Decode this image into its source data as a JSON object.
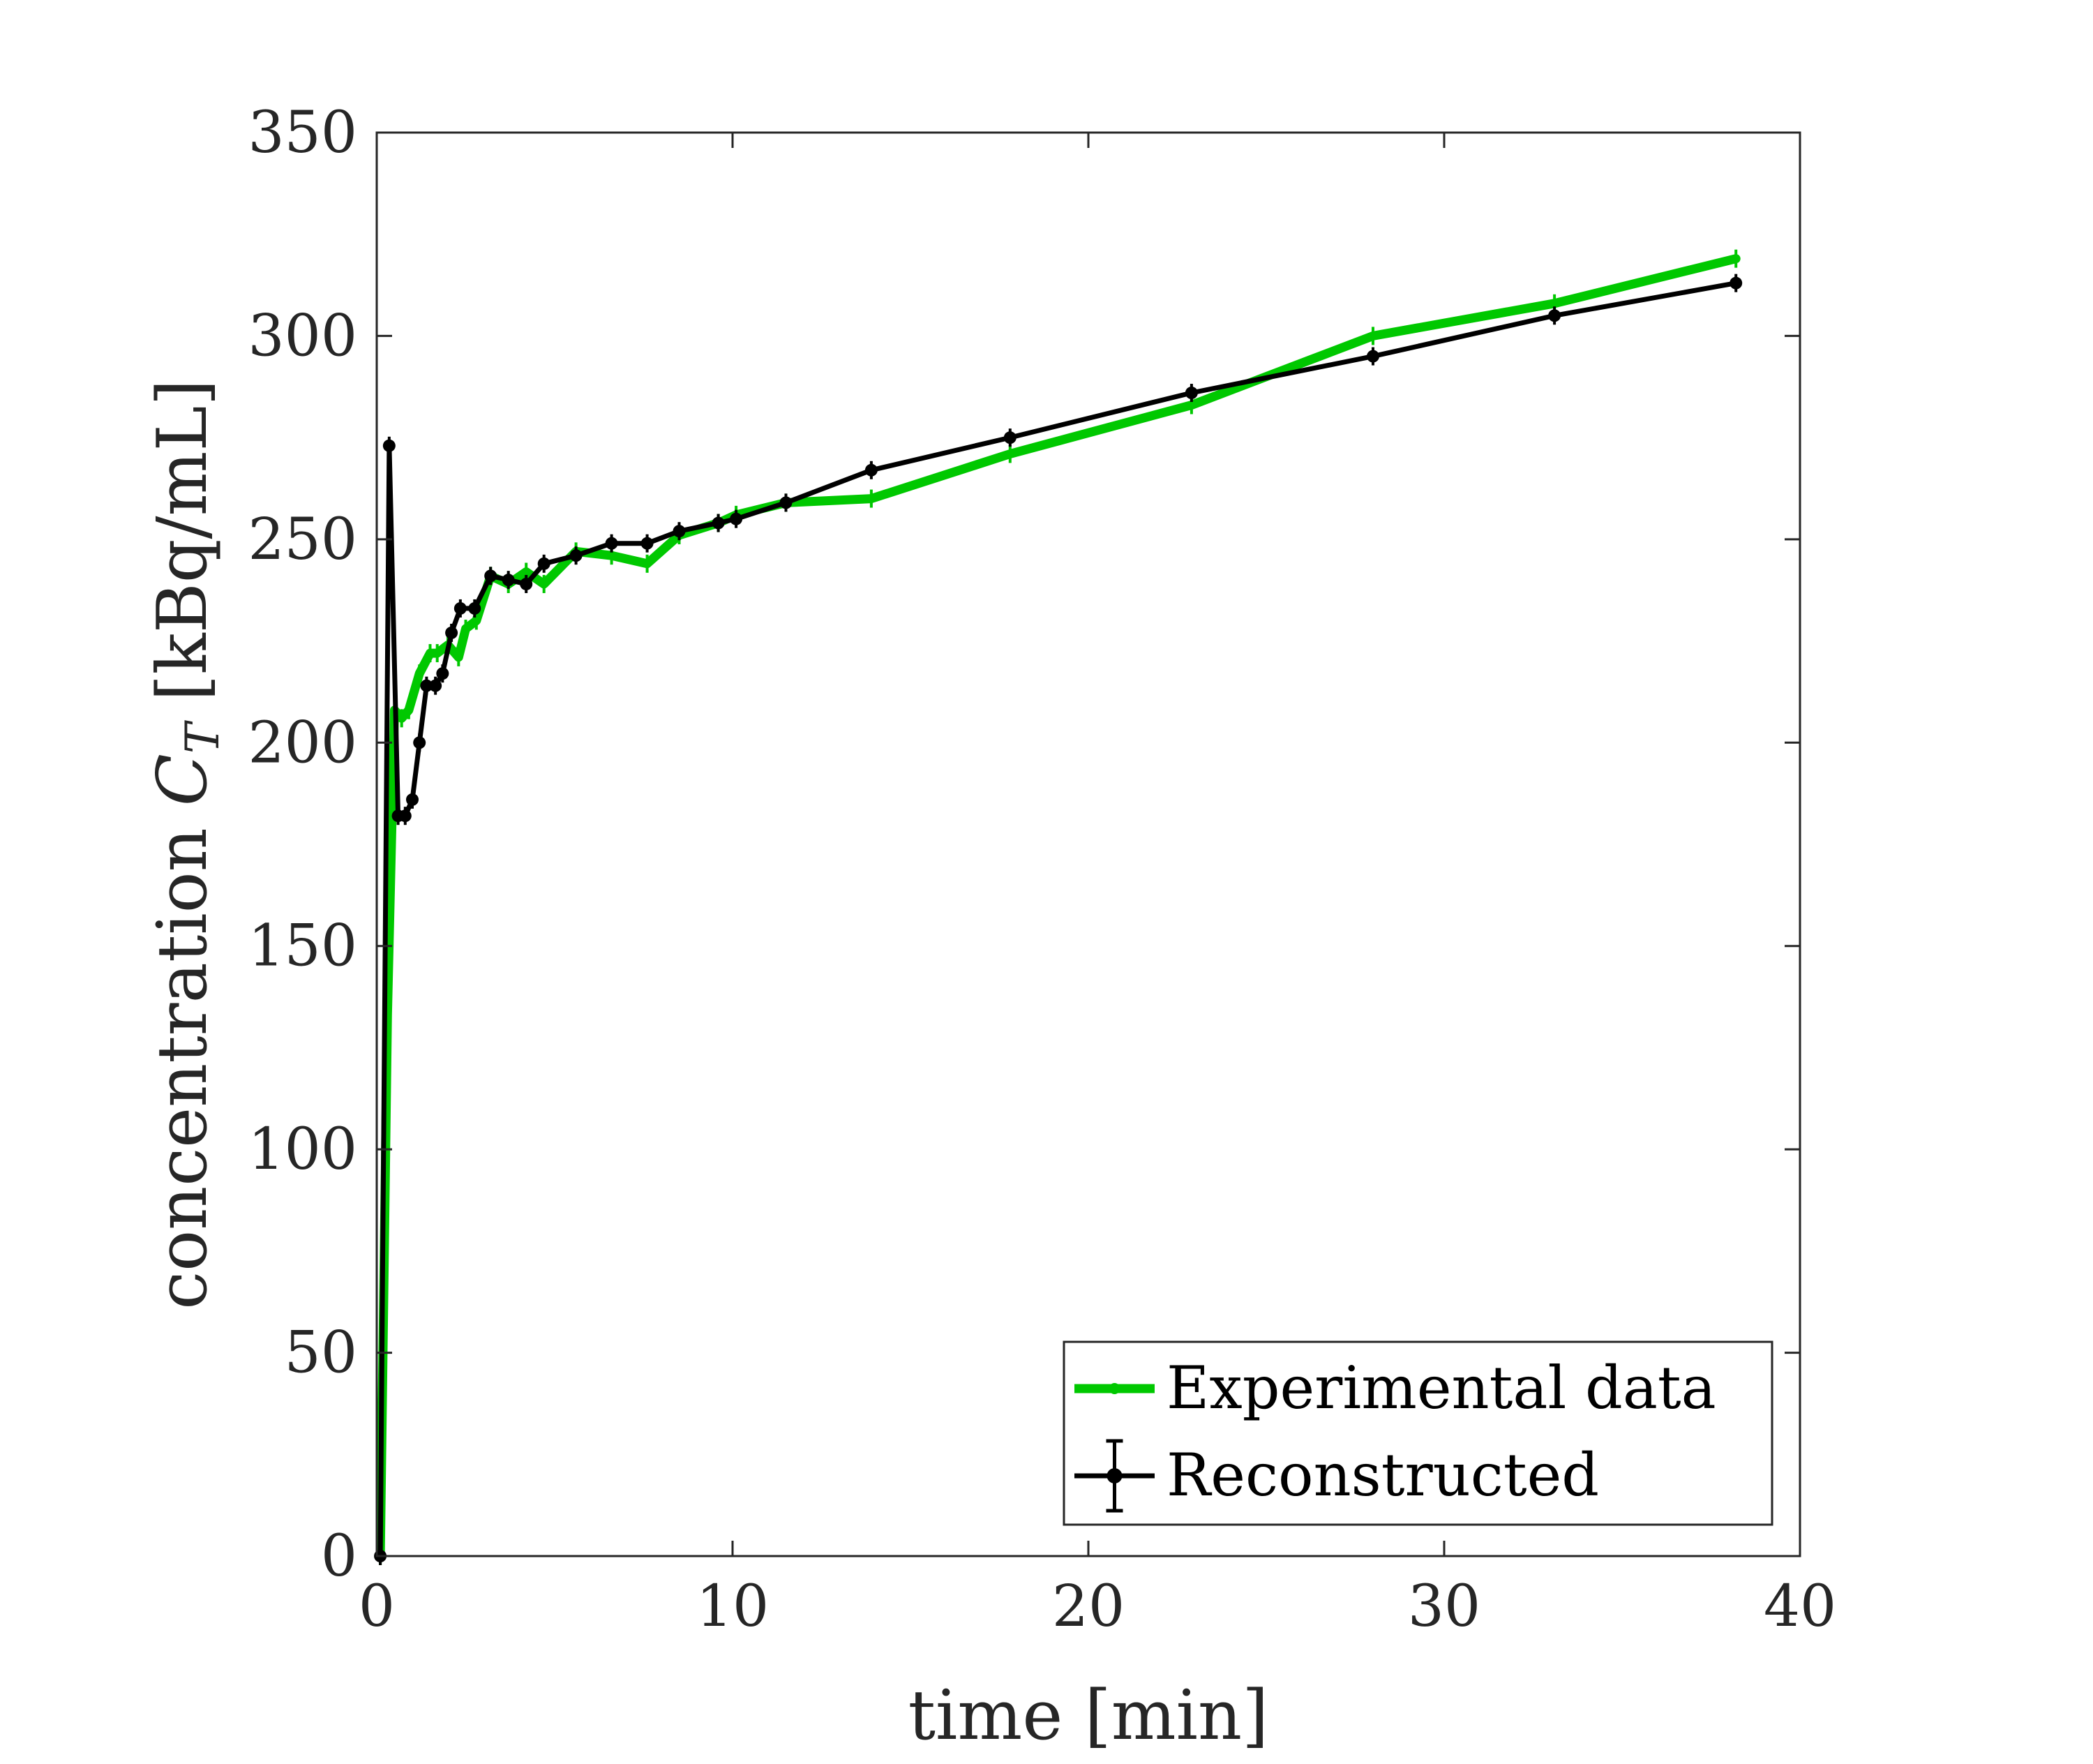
{
  "chart_data": {
    "type": "line",
    "xlabel": "time [min]",
    "ylabel_prefix": "concentration ",
    "ylabel_symbol": "C",
    "ylabel_subscript": "T",
    "ylabel_suffix": " [kBq/mL]",
    "xlim": [
      0,
      40
    ],
    "ylim": [
      0,
      350
    ],
    "xticks": [
      "0",
      "10",
      "20",
      "30",
      "40"
    ],
    "yticks": [
      "0",
      "50",
      "100",
      "150",
      "200",
      "250",
      "300",
      "350"
    ],
    "grid": false,
    "legend_position": "bottom-right",
    "series": [
      {
        "name": "Experimental data",
        "color": "#00c800",
        "x": [
          0.1,
          0.3,
          0.5,
          0.7,
          0.9,
          1.2,
          1.5,
          1.7,
          2.0,
          2.3,
          2.5,
          2.8,
          3.2,
          3.7,
          4.2,
          4.7,
          5.6,
          6.6,
          7.6,
          8.5,
          9.6,
          10.1,
          11.5,
          13.9,
          17.8,
          22.9,
          28.0,
          33.1,
          38.2
        ],
        "y": [
          0,
          133,
          208,
          206,
          208,
          217,
          222,
          222,
          224,
          221,
          228,
          230,
          241,
          239,
          242,
          239,
          247,
          246,
          244,
          251,
          254,
          256,
          259,
          260,
          271,
          283,
          300,
          308,
          319
        ]
      },
      {
        "name": "Reconstructed",
        "color": "#000000",
        "x": [
          0.1,
          0.35,
          0.6,
          0.8,
          1.0,
          1.2,
          1.4,
          1.65,
          1.85,
          2.1,
          2.35,
          2.75,
          3.2,
          3.7,
          4.2,
          4.7,
          5.6,
          6.6,
          7.6,
          8.5,
          9.6,
          10.1,
          11.5,
          13.9,
          17.8,
          22.9,
          28.0,
          33.1,
          38.2
        ],
        "y": [
          0,
          273,
          182,
          182,
          186,
          200,
          214,
          214,
          217,
          227,
          233,
          233,
          241,
          240,
          239,
          244,
          246,
          249,
          249,
          252,
          254,
          255,
          259,
          267,
          275,
          286,
          295,
          305,
          313
        ]
      }
    ]
  }
}
